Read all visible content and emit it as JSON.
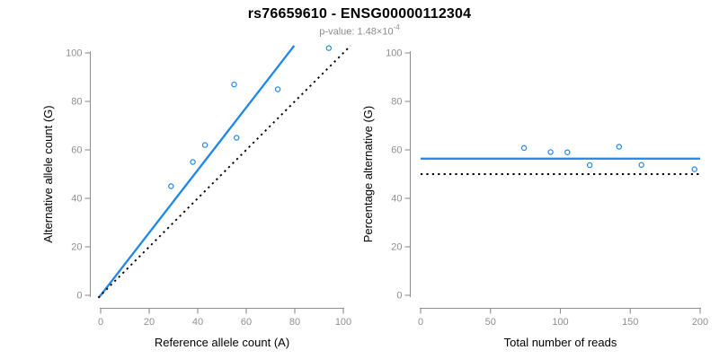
{
  "header": {
    "title": "rs76659610 - ENSG00000112304",
    "subtitle_prefix": "p-value: 1.48×10",
    "subtitle_exponent": "-4"
  },
  "colors": {
    "accent_blue": "#1e87e8",
    "reference_line_black": "#000000",
    "axis_gray": "#8f8f8f",
    "subtitle_gray": "#8c8c8c"
  },
  "chart_data": [
    {
      "type": "scatter",
      "title": "rs76659610 - ENSG00000112304",
      "subtitle": "p-value: 1.48×10^-4",
      "xlabel": "Reference allele count (A)",
      "ylabel": "Alternative allele count (G)",
      "xlim": [
        0,
        100
      ],
      "ylim": [
        0,
        100
      ],
      "xticks": [
        0,
        20,
        40,
        60,
        80,
        100
      ],
      "yticks": [
        0,
        20,
        40,
        60,
        80,
        100
      ],
      "grid": false,
      "legend": "none",
      "point_color": "#1e87e8",
      "points": [
        [
          29,
          45
        ],
        [
          38,
          55
        ],
        [
          43,
          62
        ],
        [
          56,
          65
        ],
        [
          55,
          87
        ],
        [
          73,
          85
        ],
        [
          94,
          102
        ]
      ],
      "lines": [
        {
          "name": "fitted-ratio-line",
          "kind": "ab",
          "intercept": 0,
          "slope": 1.2915,
          "style": "solid",
          "color": "#1e87e8"
        },
        {
          "name": "identity-line",
          "kind": "ab",
          "intercept": 0,
          "slope": 1,
          "style": "dotted",
          "color": "#000000"
        }
      ]
    },
    {
      "type": "scatter",
      "xlabel": "Total number of reads",
      "ylabel": "Percentage alternative (G)",
      "xlim": [
        0,
        200
      ],
      "ylim": [
        0,
        100
      ],
      "xticks": [
        0,
        50,
        100,
        150,
        200
      ],
      "yticks": [
        0,
        20,
        40,
        60,
        80,
        100
      ],
      "grid": false,
      "legend": "none",
      "point_color": "#1e87e8",
      "points": [
        [
          74,
          60.8
        ],
        [
          93,
          59.1
        ],
        [
          105,
          59.0
        ],
        [
          121,
          53.7
        ],
        [
          142,
          61.3
        ],
        [
          158,
          53.8
        ],
        [
          196,
          52.0
        ]
      ],
      "lines": [
        {
          "name": "mean-percentage-line",
          "kind": "h",
          "value": 56.4,
          "style": "solid",
          "color": "#1e87e8"
        },
        {
          "name": "expected-50-percent-line",
          "kind": "h",
          "value": 50,
          "style": "dotted",
          "color": "#000000"
        }
      ]
    }
  ]
}
